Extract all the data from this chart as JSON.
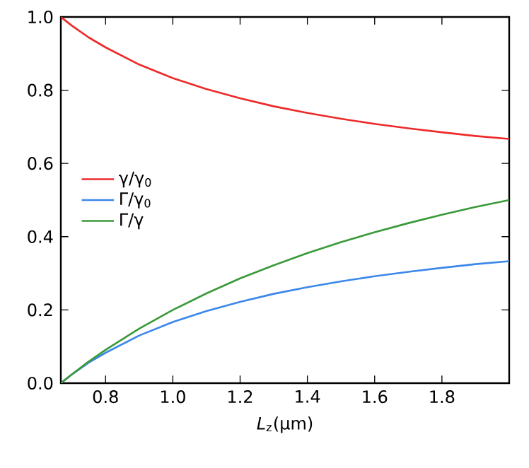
{
  "chart_data": {
    "type": "line",
    "xlabel": "*L*$_{z}$(μm)",
    "x": [
      0.667,
      0.7,
      0.75,
      0.8,
      0.9,
      1.0,
      1.1,
      1.2,
      1.3,
      1.4,
      1.5,
      1.6,
      1.7,
      1.8,
      1.9,
      2.0
    ],
    "series": [
      {
        "name": "γ/γ$_{0}$",
        "color": "#ee2a2a",
        "values": [
          1.0,
          0.976,
          0.944,
          0.917,
          0.87,
          0.833,
          0.803,
          0.778,
          0.756,
          0.738,
          0.722,
          0.708,
          0.696,
          0.685,
          0.675,
          0.667
        ]
      },
      {
        "name": "Γ/γ$_{0}$",
        "color": "#3b87ea",
        "values": [
          0.0,
          0.024,
          0.056,
          0.083,
          0.13,
          0.167,
          0.197,
          0.222,
          0.244,
          0.262,
          0.278,
          0.292,
          0.304,
          0.315,
          0.325,
          0.333
        ]
      },
      {
        "name": "Γ/γ",
        "color": "#3a9a3a",
        "values": [
          0.0,
          0.024,
          0.059,
          0.091,
          0.149,
          0.2,
          0.245,
          0.286,
          0.322,
          0.355,
          0.385,
          0.412,
          0.437,
          0.46,
          0.481,
          0.5
        ]
      }
    ],
    "xlim": [
      0.667,
      2.0
    ],
    "xticks": [
      0.8,
      {
        "value": 1.0,
        "label": "1.0"
      },
      1.2,
      1.4,
      1.6,
      1.8
    ],
    "ylim": [
      0,
      1
    ],
    "yticks": [
      {
        "value": 0,
        "label": "0.0"
      },
      0.2,
      0.4,
      0.6,
      0.8,
      {
        "value": 1,
        "label": "1.0"
      }
    ],
    "grid": false,
    "legend": "left",
    "marker": "none",
    "line_style": "solid"
  }
}
